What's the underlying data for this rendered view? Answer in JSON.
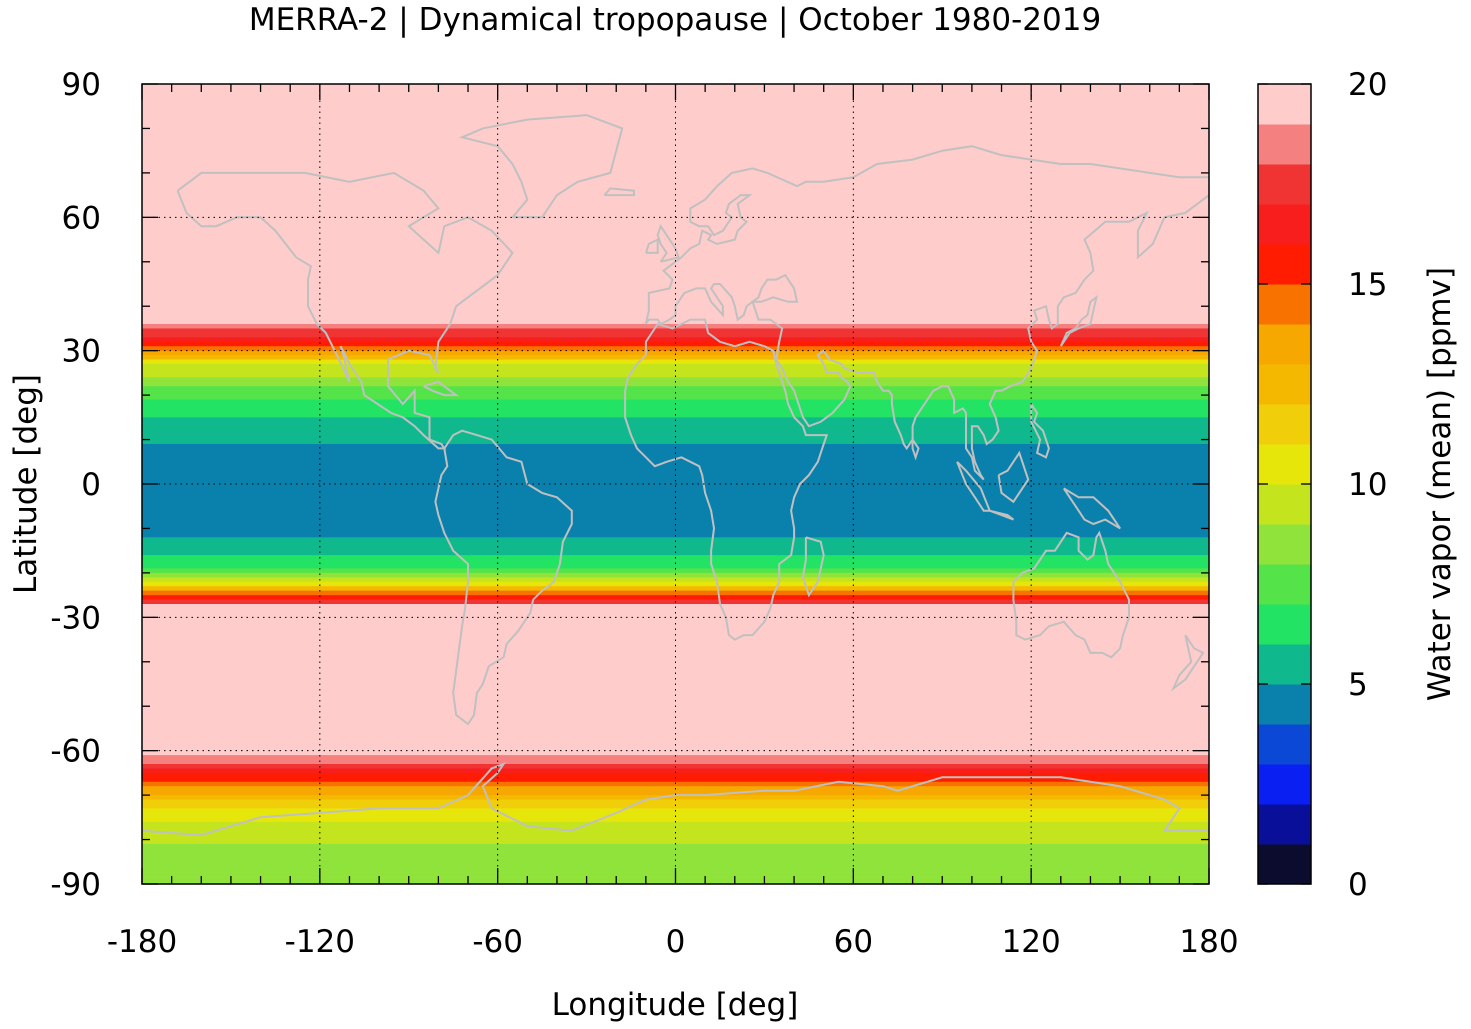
{
  "chart_data": {
    "type": "heatmap",
    "title": "MERRA-2 | Dynamical tropopause | October 1980-2019",
    "xlabel": "Longitude [deg]",
    "ylabel": "Latitude [deg]",
    "xlim": [
      -180,
      180
    ],
    "ylim": [
      -90,
      90
    ],
    "x_ticks": [
      "-180",
      "-120",
      "-60",
      "0",
      "60",
      "120",
      "180"
    ],
    "y_ticks": [
      "90",
      "60",
      "30",
      "0",
      "-30",
      "-60",
      "-90"
    ],
    "grid": true,
    "colorbar": {
      "label": "Water vapor (mean) [ppmv]",
      "range": [
        0,
        20
      ],
      "ticks": [
        "0",
        "5",
        "10",
        "15",
        "20"
      ],
      "levels": [
        {
          "from": 0,
          "to": 1,
          "color": "#0c0c2e"
        },
        {
          "from": 1,
          "to": 2,
          "color": "#0a0f9a"
        },
        {
          "from": 2,
          "to": 3,
          "color": "#0a1ff2"
        },
        {
          "from": 3,
          "to": 4,
          "color": "#0b48d6"
        },
        {
          "from": 4,
          "to": 5,
          "color": "#0a80ad"
        },
        {
          "from": 5,
          "to": 6,
          "color": "#10b98d"
        },
        {
          "from": 6,
          "to": 7,
          "color": "#22e364"
        },
        {
          "from": 7,
          "to": 8,
          "color": "#55e34a"
        },
        {
          "from": 8,
          "to": 9,
          "color": "#8fe33a"
        },
        {
          "from": 9,
          "to": 10,
          "color": "#c4e51e"
        },
        {
          "from": 10,
          "to": 11,
          "color": "#e7e60a"
        },
        {
          "from": 11,
          "to": 12,
          "color": "#f0cf0a"
        },
        {
          "from": 12,
          "to": 13,
          "color": "#f5b800"
        },
        {
          "from": 13,
          "to": 14,
          "color": "#f7a800"
        },
        {
          "from": 14,
          "to": 15,
          "color": "#f87200"
        },
        {
          "from": 15,
          "to": 16,
          "color": "#ff1c00"
        },
        {
          "from": 16,
          "to": 17,
          "color": "#f81e1e"
        },
        {
          "from": 17,
          "to": 18,
          "color": "#f03434"
        },
        {
          "from": 18,
          "to": 19,
          "color": "#f58080"
        },
        {
          "from": 19,
          "to": 20,
          "color": "#ffcccc"
        }
      ]
    },
    "zonal_profile": [
      {
        "lat": 90,
        "value": 20
      },
      {
        "lat": 38,
        "value": 20
      },
      {
        "lat": 33,
        "value": 17
      },
      {
        "lat": 30,
        "value": 14
      },
      {
        "lat": 27,
        "value": 10
      },
      {
        "lat": 22,
        "value": 8
      },
      {
        "lat": 18,
        "value": 6.5
      },
      {
        "lat": 13,
        "value": 5.5
      },
      {
        "lat": 5,
        "value": 4.5
      },
      {
        "lat": 0,
        "value": 4.5
      },
      {
        "lat": -10,
        "value": 4.5
      },
      {
        "lat": -15,
        "value": 5.5
      },
      {
        "lat": -19,
        "value": 7
      },
      {
        "lat": -22,
        "value": 10
      },
      {
        "lat": -25,
        "value": 15
      },
      {
        "lat": -28,
        "value": 20
      },
      {
        "lat": -60,
        "value": 20
      },
      {
        "lat": -64,
        "value": 17
      },
      {
        "lat": -68,
        "value": 14
      },
      {
        "lat": -73,
        "value": 11
      },
      {
        "lat": -78,
        "value": 9.5
      },
      {
        "lat": -84,
        "value": 8.5
      },
      {
        "lat": -90,
        "value": 8.5
      }
    ]
  }
}
